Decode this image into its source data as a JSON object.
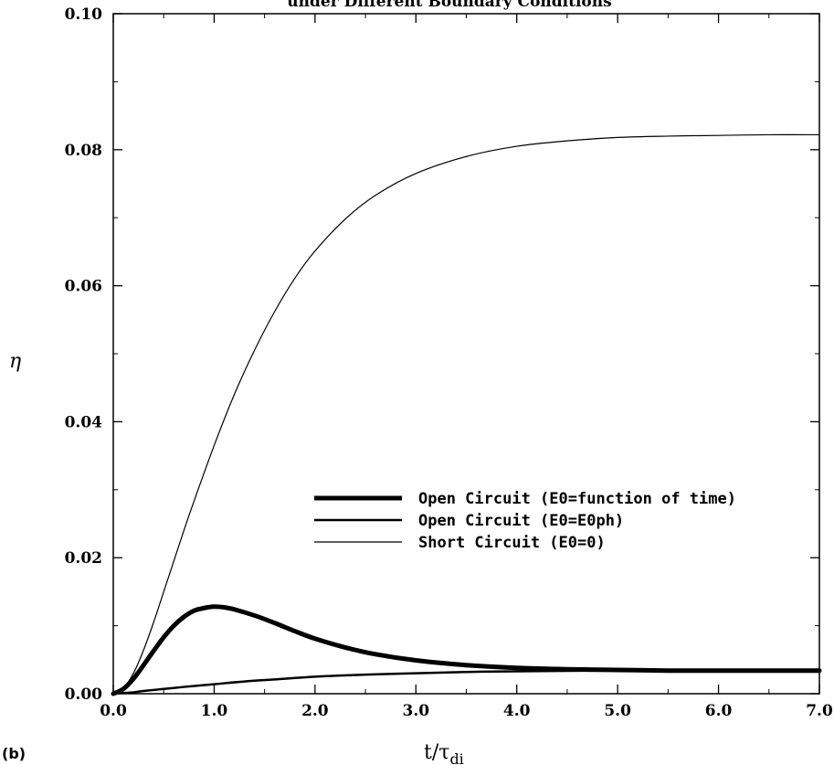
{
  "chart_data": {
    "type": "line",
    "title": "under Different Boundary Conditions",
    "xlabel": "t/τdi",
    "xlabel_main": "t/τ",
    "xlabel_sub": "di",
    "ylabel": "η",
    "panel_label": "(b)",
    "xlim": [
      0.0,
      7.0
    ],
    "ylim": [
      0.0,
      0.1
    ],
    "x_ticks": [
      "0.0",
      "1.0",
      "2.0",
      "3.0",
      "4.0",
      "5.0",
      "6.0",
      "7.0"
    ],
    "y_ticks": [
      "0.00",
      "0.02",
      "0.04",
      "0.06",
      "0.08",
      "0.10"
    ],
    "x_tick_values": [
      0,
      1,
      2,
      3,
      4,
      5,
      6,
      7
    ],
    "y_tick_values": [
      0.0,
      0.02,
      0.04,
      0.06,
      0.08,
      0.1
    ],
    "legend_position": "center-right",
    "series": [
      {
        "name": "Open Circuit (E0=function of time)",
        "stroke_width": 5,
        "color": "#000000",
        "x": [
          0.0,
          0.1,
          0.2,
          0.3,
          0.4,
          0.5,
          0.6,
          0.7,
          0.8,
          0.9,
          1.0,
          1.1,
          1.2,
          1.4,
          1.6,
          1.8,
          2.0,
          2.3,
          2.6,
          3.0,
          3.5,
          4.0,
          4.5,
          5.0,
          5.5,
          6.0,
          6.5,
          7.0
        ],
        "y": [
          0.0,
          0.0007,
          0.0022,
          0.0042,
          0.0063,
          0.0083,
          0.01,
          0.0113,
          0.0122,
          0.0126,
          0.0128,
          0.0127,
          0.0124,
          0.0115,
          0.0104,
          0.0092,
          0.0081,
          0.0068,
          0.0058,
          0.0049,
          0.0042,
          0.0038,
          0.0036,
          0.0035,
          0.0034,
          0.0034,
          0.0034,
          0.0034
        ]
      },
      {
        "name": "Open Circuit (E0=E0ph)",
        "stroke_width": 2.5,
        "color": "#000000",
        "x": [
          0.0,
          0.1,
          0.2,
          0.3,
          0.5,
          0.7,
          1.0,
          1.3,
          1.6,
          2.0,
          2.5,
          3.0,
          3.5,
          4.0,
          5.0,
          6.0,
          7.0
        ],
        "y": [
          0.0,
          0.0001,
          0.0002,
          0.0004,
          0.0007,
          0.001,
          0.0014,
          0.0018,
          0.0021,
          0.0025,
          0.0028,
          0.003,
          0.0032,
          0.0033,
          0.0034,
          0.0034,
          0.0034
        ]
      },
      {
        "name": "Short Circuit (E0=0)",
        "stroke_width": 1.2,
        "color": "#000000",
        "x": [
          0.0,
          0.1,
          0.2,
          0.3,
          0.4,
          0.5,
          0.6,
          0.7,
          0.8,
          1.0,
          1.2,
          1.4,
          1.6,
          1.8,
          2.0,
          2.3,
          2.6,
          3.0,
          3.5,
          4.0,
          4.5,
          5.0,
          5.5,
          6.0,
          6.5,
          7.0
        ],
        "y": [
          0.0,
          0.0008,
          0.003,
          0.0064,
          0.0105,
          0.015,
          0.0195,
          0.024,
          0.0283,
          0.0365,
          0.044,
          0.0505,
          0.0562,
          0.0611,
          0.0651,
          0.0698,
          0.0733,
          0.0765,
          0.079,
          0.0805,
          0.0813,
          0.0818,
          0.082,
          0.0821,
          0.0822,
          0.0822
        ]
      }
    ]
  }
}
